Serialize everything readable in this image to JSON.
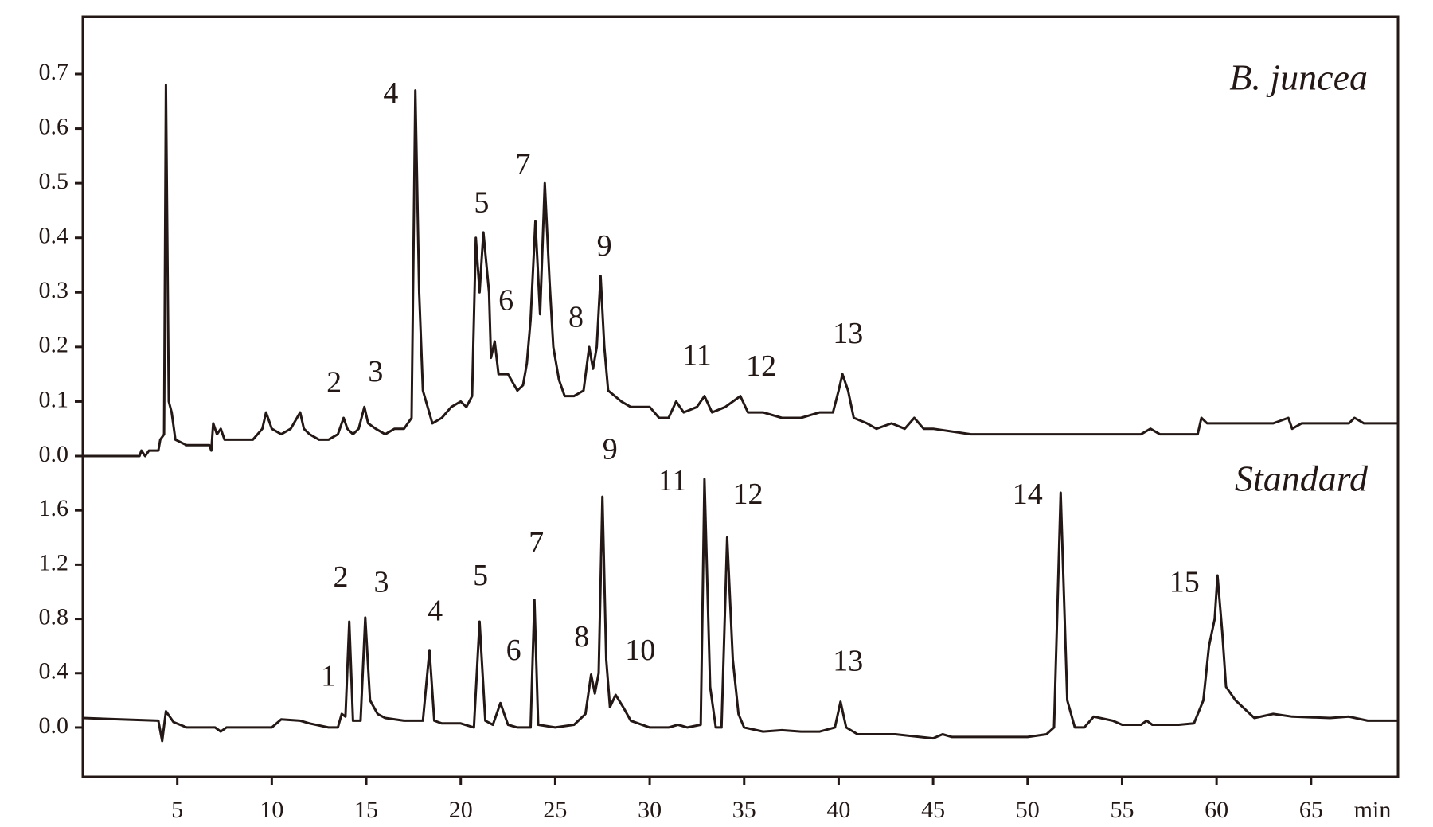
{
  "chart_data": [
    {
      "type": "line",
      "title": "B. juncea",
      "color": "#231815",
      "xlim": [
        0,
        69.6
      ],
      "ylim": [
        0,
        0.805
      ],
      "yticks": [
        {
          "value": 0,
          "label": "0.0"
        },
        0.1,
        0.2,
        0.3,
        0.4,
        0.5,
        0.6,
        0.7
      ],
      "x": [
        0,
        3,
        3.1,
        3.3,
        3.5,
        4,
        4.1,
        4.3,
        4.4,
        4.55,
        4.7,
        4.9,
        5.5,
        6.7,
        6.8,
        6.9,
        7.1,
        7.3,
        7.5,
        8,
        9,
        9.5,
        9.7,
        10,
        10.5,
        11,
        11.5,
        11.7,
        12,
        12.5,
        13,
        13.5,
        13.8,
        14,
        14.3,
        14.6,
        14.9,
        15.1,
        15.5,
        16,
        16.5,
        17,
        17.4,
        17.6,
        17.8,
        18,
        18.5,
        19,
        19.5,
        20,
        20.3,
        20.6,
        20.8,
        21,
        21.2,
        21.5,
        21.6,
        21.8,
        22,
        22.5,
        23,
        23.3,
        23.5,
        23.7,
        23.95,
        24.2,
        24.45,
        24.7,
        24.9,
        25.2,
        25.5,
        26,
        26.5,
        26.8,
        27,
        27.2,
        27.4,
        27.6,
        27.8,
        28.5,
        29,
        30,
        30.5,
        31,
        31.4,
        31.8,
        32.5,
        32.9,
        33.3,
        34,
        34.8,
        35.2,
        36,
        37,
        38,
        39,
        39.7,
        40,
        40.2,
        40.5,
        40.8,
        41.5,
        42,
        42.8,
        43.5,
        44,
        44.5,
        45,
        47,
        50,
        53,
        56,
        56.5,
        57,
        59,
        59.2,
        59.5,
        60,
        63,
        63.8,
        64,
        64.5,
        67,
        67.3,
        67.8,
        69.6
      ],
      "values": [
        0,
        0,
        0.01,
        0,
        0.01,
        0.01,
        0.03,
        0.04,
        0.68,
        0.1,
        0.08,
        0.03,
        0.02,
        0.02,
        0.01,
        0.06,
        0.04,
        0.05,
        0.03,
        0.03,
        0.03,
        0.05,
        0.08,
        0.05,
        0.04,
        0.05,
        0.08,
        0.05,
        0.04,
        0.03,
        0.03,
        0.04,
        0.07,
        0.05,
        0.04,
        0.05,
        0.09,
        0.06,
        0.05,
        0.04,
        0.05,
        0.05,
        0.07,
        0.67,
        0.3,
        0.12,
        0.06,
        0.07,
        0.09,
        0.1,
        0.09,
        0.11,
        0.4,
        0.3,
        0.41,
        0.3,
        0.18,
        0.21,
        0.15,
        0.15,
        0.12,
        0.13,
        0.17,
        0.25,
        0.43,
        0.26,
        0.5,
        0.32,
        0.2,
        0.14,
        0.11,
        0.11,
        0.12,
        0.2,
        0.16,
        0.2,
        0.33,
        0.2,
        0.12,
        0.1,
        0.09,
        0.09,
        0.07,
        0.07,
        0.1,
        0.08,
        0.09,
        0.11,
        0.08,
        0.09,
        0.11,
        0.08,
        0.08,
        0.07,
        0.07,
        0.08,
        0.08,
        0.12,
        0.15,
        0.12,
        0.07,
        0.06,
        0.05,
        0.06,
        0.05,
        0.07,
        0.05,
        0.05,
        0.04,
        0.04,
        0.04,
        0.04,
        0.05,
        0.04,
        0.04,
        0.07,
        0.06,
        0.06,
        0.06,
        0.07,
        0.05,
        0.06,
        0.06,
        0.07,
        0.06,
        0.06
      ],
      "annotations": [
        {
          "text": "2",
          "x": 13.3,
          "y": 0.13
        },
        {
          "text": "3",
          "x": 15.5,
          "y": 0.15
        },
        {
          "text": "4",
          "x": 16.3,
          "y": 0.66
        },
        {
          "text": "5",
          "x": 21.1,
          "y": 0.46
        },
        {
          "text": "6",
          "x": 22.4,
          "y": 0.28
        },
        {
          "text": "7",
          "x": 23.3,
          "y": 0.53
        },
        {
          "text": "8",
          "x": 26.1,
          "y": 0.25
        },
        {
          "text": "9",
          "x": 27.6,
          "y": 0.38
        },
        {
          "text": "11",
          "x": 32.5,
          "y": 0.18
        },
        {
          "text": "12",
          "x": 35.9,
          "y": 0.16
        },
        {
          "text": "13",
          "x": 40.5,
          "y": 0.22
        }
      ]
    },
    {
      "type": "line",
      "title": "Standard",
      "color": "#231815",
      "x_label": "min",
      "xlim": [
        0,
        69.6
      ],
      "ylim": [
        -0.364,
        2.0
      ],
      "xticks": [
        5,
        10,
        15,
        20,
        25,
        30,
        35,
        40,
        45,
        50,
        55,
        60,
        65
      ],
      "yticks": [
        {
          "value": 0,
          "label": "0.0"
        },
        0.4,
        0.8,
        1.2,
        1.6
      ],
      "x": [
        0,
        2,
        4,
        4.2,
        4.4,
        4.8,
        5.5,
        7,
        7.3,
        7.6,
        10,
        10.5,
        11.5,
        12,
        13,
        13.5,
        13.7,
        13.9,
        14.1,
        14.3,
        14.7,
        14.95,
        15.2,
        15.6,
        16,
        17,
        18,
        18.35,
        18.6,
        19,
        20,
        20.7,
        21,
        21.3,
        21.7,
        22.1,
        22.5,
        23,
        23.7,
        23.9,
        24.1,
        25,
        26,
        26.6,
        26.9,
        27.1,
        27.3,
        27.5,
        27.7,
        27.9,
        28.2,
        28.6,
        29,
        30,
        31,
        31.5,
        32,
        32.7,
        32.9,
        33.2,
        33.5,
        33.8,
        34.1,
        34.4,
        34.7,
        35,
        36,
        37,
        38,
        39,
        39.8,
        40.1,
        40.4,
        41,
        43,
        45,
        45.5,
        46,
        50,
        51,
        51.4,
        51.75,
        52.1,
        52.5,
        53,
        53.5,
        54.5,
        55,
        56,
        56.3,
        56.6,
        58,
        58.8,
        59.3,
        59.6,
        59.9,
        60.05,
        60.3,
        60.5,
        61,
        62,
        63,
        64,
        66,
        67,
        68,
        69.6
      ],
      "values": [
        0.07,
        0.06,
        0.05,
        -0.1,
        0.12,
        0.04,
        0,
        0,
        -0.03,
        0,
        0,
        0.06,
        0.05,
        0.03,
        0,
        0,
        0.1,
        0.08,
        0.78,
        0.05,
        0.05,
        0.81,
        0.2,
        0.1,
        0.07,
        0.05,
        0.05,
        0.57,
        0.05,
        0.03,
        0.03,
        0,
        0.78,
        0.05,
        0.02,
        0.18,
        0.02,
        0,
        0,
        0.94,
        0.02,
        0,
        0.02,
        0.1,
        0.39,
        0.25,
        0.4,
        1.7,
        0.5,
        0.15,
        0.24,
        0.15,
        0.05,
        0,
        0,
        0.02,
        0,
        0.02,
        1.83,
        0.3,
        0,
        0,
        1.4,
        0.5,
        0.1,
        0,
        -0.03,
        -0.02,
        -0.03,
        -0.03,
        0,
        0.19,
        0,
        -0.05,
        -0.05,
        -0.08,
        -0.05,
        -0.07,
        -0.07,
        -0.05,
        0,
        1.73,
        0.2,
        0,
        0,
        0.08,
        0.05,
        0.02,
        0.02,
        0.05,
        0.02,
        0.02,
        0.03,
        0.2,
        0.6,
        0.8,
        1.12,
        0.7,
        0.3,
        0.2,
        0.07,
        0.1,
        0.08,
        0.07,
        0.08,
        0.05,
        0.05
      ],
      "annotations": [
        {
          "text": "1",
          "x": 13,
          "y": 0.36
        },
        {
          "text": "2",
          "x": 13.65,
          "y": 1.09
        },
        {
          "text": "3",
          "x": 15.8,
          "y": 1.05
        },
        {
          "text": "4",
          "x": 18.65,
          "y": 0.84
        },
        {
          "text": "5",
          "x": 21.05,
          "y": 1.1
        },
        {
          "text": "6",
          "x": 22.8,
          "y": 0.55
        },
        {
          "text": "7",
          "x": 24.0,
          "y": 1.34
        },
        {
          "text": "8",
          "x": 26.4,
          "y": 0.65
        },
        {
          "text": "9",
          "x": 27.9,
          "y": 2.03
        },
        {
          "text": "10",
          "x": 29.5,
          "y": 0.55
        },
        {
          "text": "11",
          "x": 31.2,
          "y": 1.8
        },
        {
          "text": "12",
          "x": 35.2,
          "y": 1.7
        },
        {
          "text": "13",
          "x": 40.5,
          "y": 0.47
        },
        {
          "text": "14",
          "x": 50.0,
          "y": 1.7
        },
        {
          "text": "15",
          "x": 58.3,
          "y": 1.05
        }
      ]
    }
  ]
}
